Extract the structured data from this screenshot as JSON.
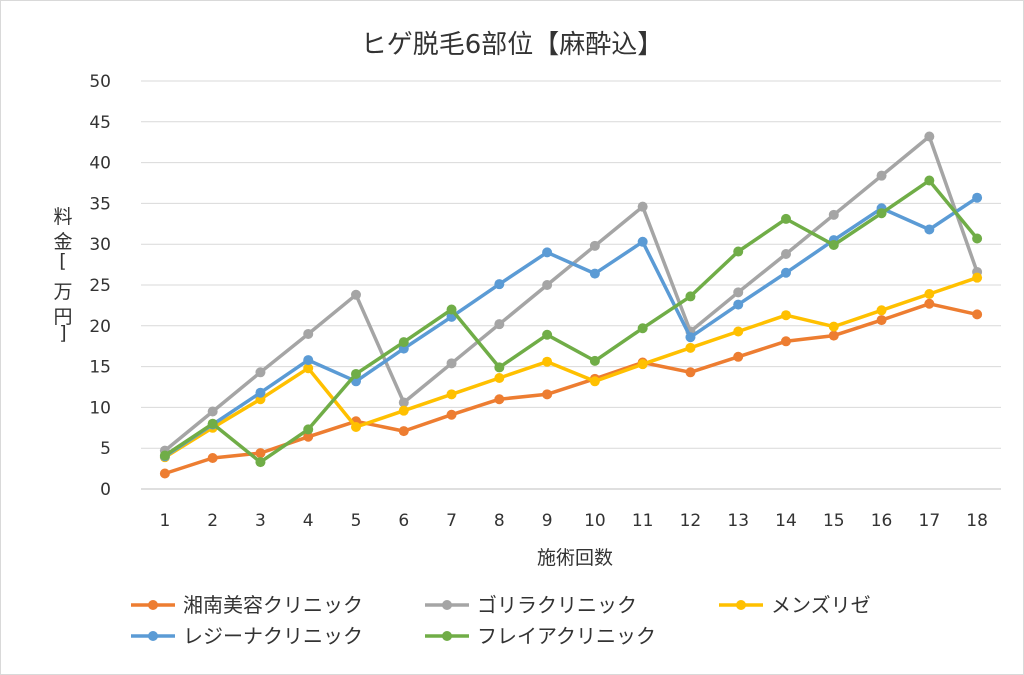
{
  "chart_data": {
    "type": "line",
    "title": "ヒゲ脱毛6部位【麻酔込】",
    "xlabel": "施術回数",
    "ylabel": "料金 [万円]",
    "ylabel_chars": [
      "料",
      "金",
      "[",
      "万",
      "円",
      "]"
    ],
    "ylim": [
      0,
      50
    ],
    "yticks": [
      0,
      5,
      10,
      15,
      20,
      25,
      30,
      35,
      40,
      45,
      50
    ],
    "categories": [
      1,
      2,
      3,
      4,
      5,
      6,
      7,
      8,
      9,
      10,
      11,
      12,
      13,
      14,
      15,
      16,
      17,
      18
    ],
    "grid": true,
    "legend": "bottom",
    "series": [
      {
        "name": "湘南美容クリニック",
        "color": "#ED7D31",
        "values": [
          1.9,
          3.8,
          4.4,
          6.4,
          8.3,
          7.1,
          9.1,
          11.0,
          11.6,
          13.5,
          15.5,
          14.3,
          16.2,
          18.1,
          18.8,
          20.7,
          22.7,
          21.4
        ]
      },
      {
        "name": "ゴリラクリニック",
        "color": "#A5A5A5",
        "values": [
          4.7,
          9.5,
          14.3,
          19.0,
          23.8,
          10.6,
          15.4,
          20.2,
          25.0,
          29.8,
          34.6,
          19.3,
          24.1,
          28.8,
          33.6,
          38.4,
          43.2,
          26.6
        ]
      },
      {
        "name": "メンズリゼ",
        "color": "#FFC000",
        "values": [
          3.9,
          7.5,
          11.0,
          14.8,
          7.6,
          9.6,
          11.6,
          13.6,
          15.6,
          13.2,
          15.3,
          17.3,
          19.3,
          21.3,
          19.9,
          21.9,
          23.9,
          25.9
        ]
      },
      {
        "name": "レジーナクリニック",
        "color": "#5B9BD5",
        "values": [
          4.0,
          7.9,
          11.8,
          15.8,
          13.2,
          17.2,
          21.1,
          25.1,
          29.0,
          26.4,
          30.3,
          18.6,
          22.6,
          26.5,
          30.5,
          34.4,
          31.8,
          35.7
        ]
      },
      {
        "name": "フレイアクリニック",
        "color": "#70AD47",
        "values": [
          4.1,
          8.0,
          3.3,
          7.3,
          14.1,
          18.0,
          22.0,
          14.9,
          18.9,
          15.7,
          19.7,
          23.6,
          29.1,
          33.1,
          29.9,
          33.8,
          37.8,
          30.7
        ]
      }
    ]
  }
}
